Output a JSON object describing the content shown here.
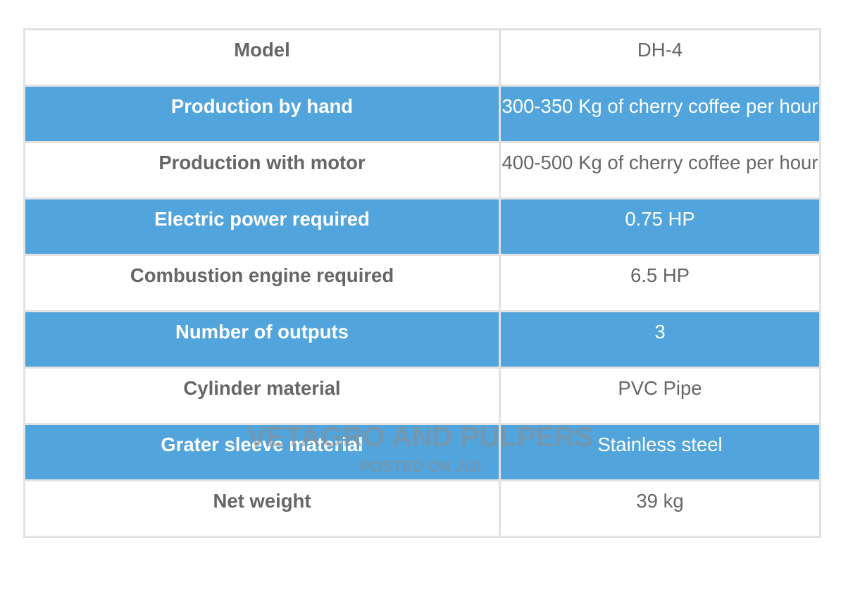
{
  "table": {
    "rows": [
      [
        "Model",
        "DH-4"
      ],
      [
        "Production by hand",
        "300-350 Kg of cherry coffee per hour"
      ],
      [
        "Production with motor",
        "400-500 Kg of cherry coffee per hour"
      ],
      [
        "Electric power required",
        "0.75 HP"
      ],
      [
        "Combustion engine required",
        "6.5 HP"
      ],
      [
        "Number of outputs",
        "3"
      ],
      [
        "Cylinder material",
        "PVC Pipe"
      ],
      [
        "Grater sleeve material",
        "Stainless steel"
      ],
      [
        "Net weight",
        "39 kg"
      ]
    ]
  },
  "watermark": {
    "title": "VETAGRO AND PULPERS",
    "subtitle": "POSTED ON JIJI"
  }
}
